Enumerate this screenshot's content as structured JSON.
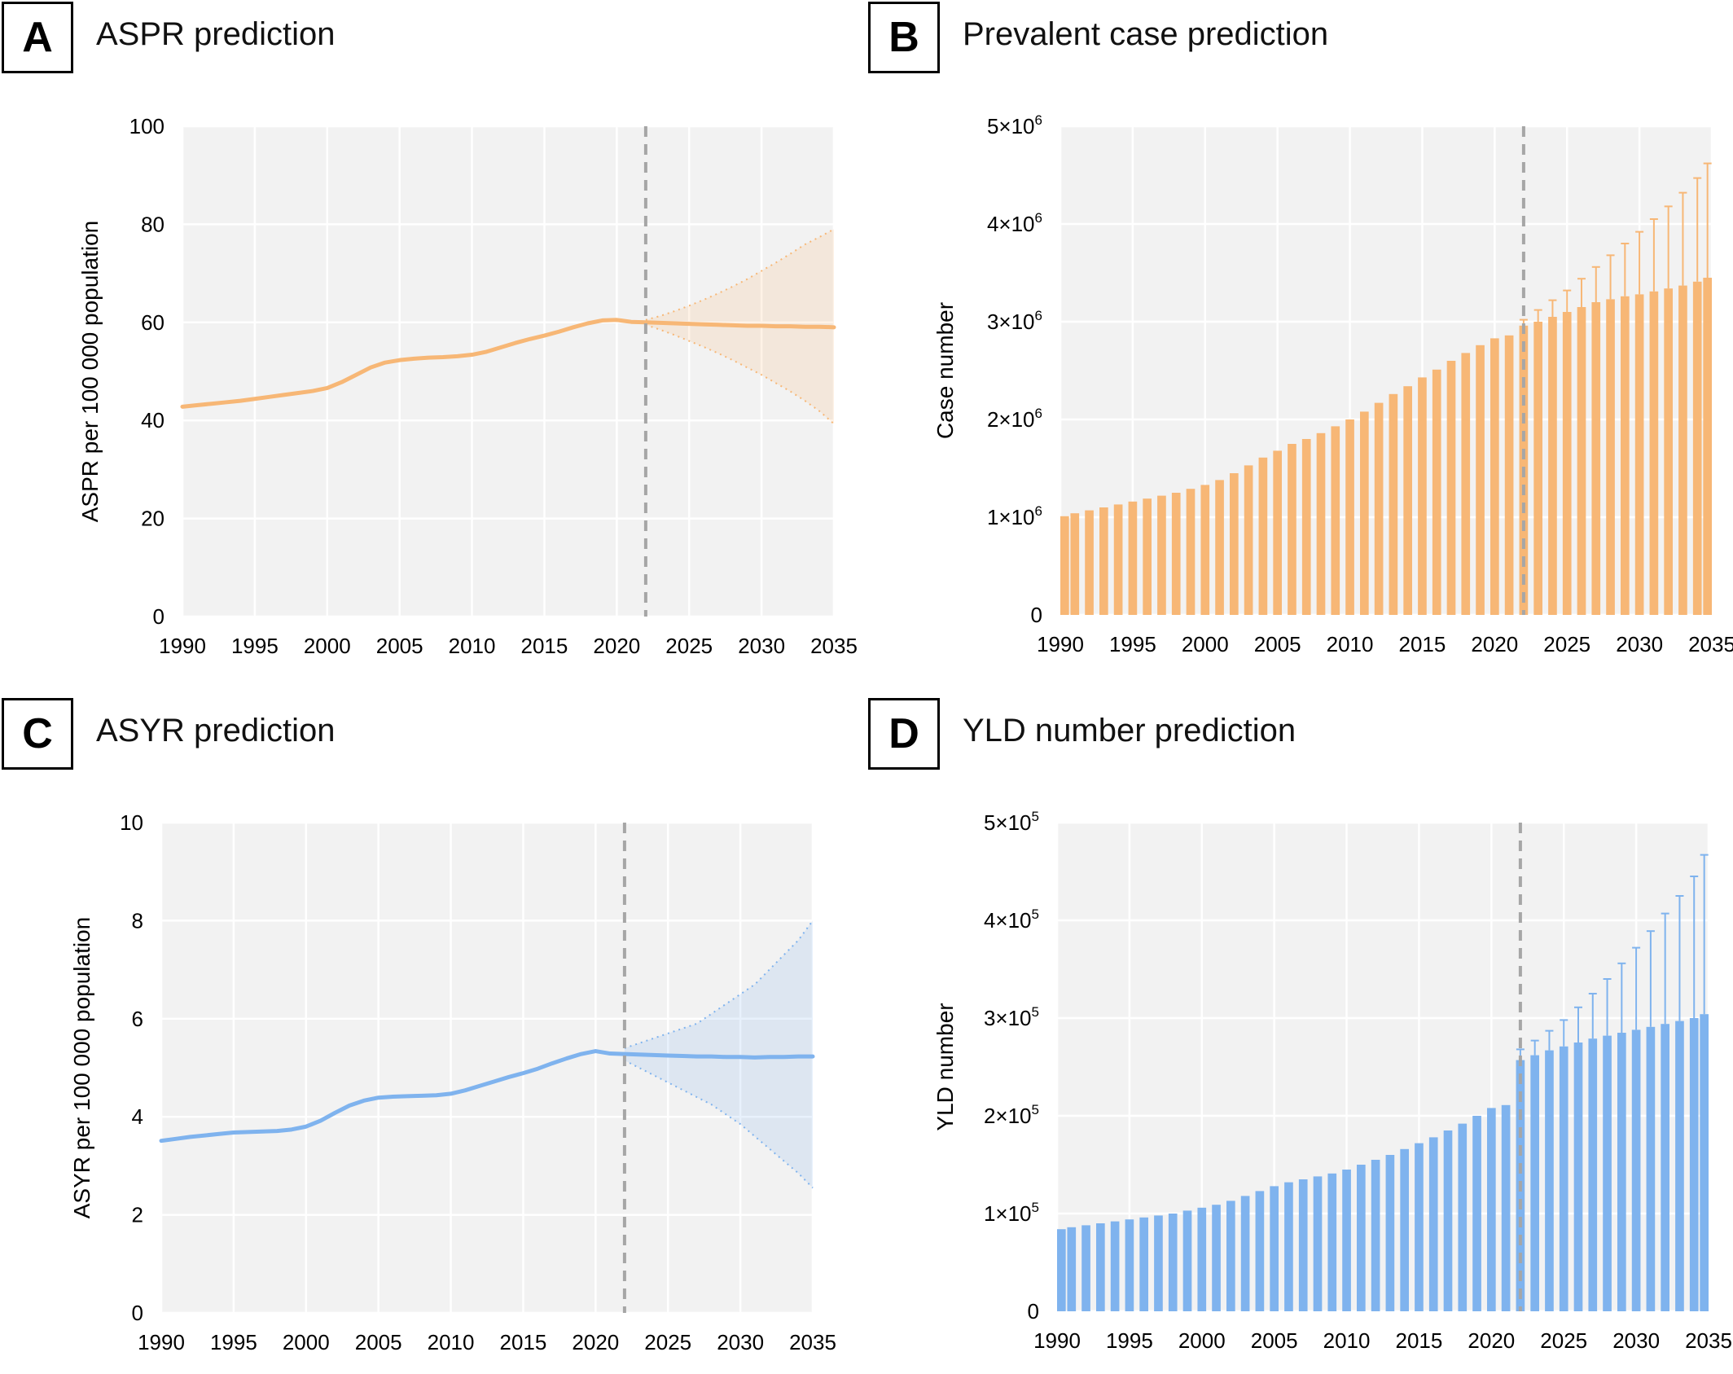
{
  "panels": [
    {
      "letter": "A",
      "title": "ASPR prediction",
      "chart_data": {
        "type": "line",
        "title": "ASPR prediction",
        "xlabel": "",
        "ylabel": "ASPR per 100 000 population",
        "xlim": [
          1990,
          2035
        ],
        "ylim": [
          0,
          100
        ],
        "xticks": [
          "1990",
          "1995",
          "2000",
          "2005",
          "2010",
          "2015",
          "2020",
          "2025",
          "2030",
          "2035"
        ],
        "yticks": [
          "0",
          "20",
          "40",
          "60",
          "80",
          "100"
        ],
        "prediction_start": 2022,
        "color": "#f7b776",
        "x": [
          1990,
          1991,
          1992,
          1993,
          1994,
          1995,
          1996,
          1997,
          1998,
          1999,
          2000,
          2001,
          2002,
          2003,
          2004,
          2005,
          2006,
          2007,
          2008,
          2009,
          2010,
          2011,
          2012,
          2013,
          2014,
          2015,
          2016,
          2017,
          2018,
          2019,
          2020,
          2021,
          2022,
          2023,
          2024,
          2025,
          2026,
          2027,
          2028,
          2029,
          2030,
          2031,
          2032,
          2033,
          2034,
          2035
        ],
        "values": [
          42.8,
          43.1,
          43.4,
          43.7,
          44.0,
          44.4,
          44.8,
          45.2,
          45.6,
          46.0,
          46.6,
          47.8,
          49.3,
          50.8,
          51.8,
          52.3,
          52.6,
          52.8,
          52.9,
          53.1,
          53.4,
          54.0,
          54.9,
          55.8,
          56.6,
          57.3,
          58.1,
          59.0,
          59.8,
          60.4,
          60.5,
          60.1,
          60.0,
          59.9,
          59.8,
          59.7,
          59.6,
          59.5,
          59.4,
          59.3,
          59.3,
          59.2,
          59.2,
          59.1,
          59.1,
          59.0
        ],
        "ci_x": [
          2022,
          2023,
          2024,
          2025,
          2026,
          2027,
          2028,
          2029,
          2030,
          2031,
          2032,
          2033,
          2034,
          2035
        ],
        "ci_upper": [
          60.5,
          61.3,
          62.3,
          63.4,
          64.6,
          65.9,
          67.3,
          68.8,
          70.5,
          72.2,
          74.0,
          75.9,
          77.4,
          79.0
        ],
        "ci_lower": [
          59.5,
          58.5,
          57.4,
          56.2,
          55.0,
          53.7,
          52.3,
          50.8,
          49.3,
          47.6,
          45.9,
          44.0,
          41.9,
          39.3
        ]
      }
    },
    {
      "letter": "B",
      "title": "Prevalent case prediction",
      "chart_data": {
        "type": "bar",
        "title": "Prevalent case prediction",
        "xlabel": "",
        "ylabel": "Case number",
        "xlim": [
          1990,
          2035
        ],
        "ylim": [
          0,
          5000000
        ],
        "xticks": [
          "1990",
          "1995",
          "2000",
          "2005",
          "2010",
          "2015",
          "2020",
          "2025",
          "2030",
          "2035"
        ],
        "yticks": [
          "0",
          "1×10",
          "2×10",
          "3×10",
          "4×10",
          "5×10"
        ],
        "ytick_exponent": "6",
        "prediction_start": 2022,
        "color": "#f7b776",
        "x": [
          1990,
          1991,
          1992,
          1993,
          1994,
          1995,
          1996,
          1997,
          1998,
          1999,
          2000,
          2001,
          2002,
          2003,
          2004,
          2005,
          2006,
          2007,
          2008,
          2009,
          2010,
          2011,
          2012,
          2013,
          2014,
          2015,
          2016,
          2017,
          2018,
          2019,
          2020,
          2021,
          2022,
          2023,
          2024,
          2025,
          2026,
          2027,
          2028,
          2029,
          2030,
          2031,
          2032,
          2033,
          2034,
          2035
        ],
        "values": [
          1010000,
          1040000,
          1070000,
          1100000,
          1130000,
          1160000,
          1190000,
          1220000,
          1250000,
          1290000,
          1330000,
          1380000,
          1450000,
          1530000,
          1610000,
          1680000,
          1750000,
          1800000,
          1860000,
          1930000,
          2000000,
          2080000,
          2170000,
          2260000,
          2340000,
          2430000,
          2510000,
          2600000,
          2680000,
          2760000,
          2830000,
          2860000,
          2960000,
          3000000,
          3050000,
          3100000,
          3150000,
          3200000,
          3230000,
          3260000,
          3280000,
          3310000,
          3340000,
          3370000,
          3410000,
          3450000
        ],
        "error_upper": [
          null,
          null,
          null,
          null,
          null,
          null,
          null,
          null,
          null,
          null,
          null,
          null,
          null,
          null,
          null,
          null,
          null,
          null,
          null,
          null,
          null,
          null,
          null,
          null,
          null,
          null,
          null,
          null,
          null,
          null,
          null,
          null,
          3020000,
          3120000,
          3220000,
          3320000,
          3440000,
          3560000,
          3680000,
          3800000,
          3920000,
          4050000,
          4180000,
          4320000,
          4470000,
          4620000
        ]
      }
    },
    {
      "letter": "C",
      "title": "ASYR prediction",
      "chart_data": {
        "type": "line",
        "title": "ASYR prediction",
        "xlabel": "",
        "ylabel": "ASYR per 100 000 population",
        "xlim": [
          1990,
          2035
        ],
        "ylim": [
          0,
          10
        ],
        "xticks": [
          "1990",
          "1995",
          "2000",
          "2005",
          "2010",
          "2015",
          "2020",
          "2025",
          "2030",
          "2035"
        ],
        "yticks": [
          "0",
          "2",
          "4",
          "6",
          "8",
          "10"
        ],
        "prediction_start": 2022,
        "color": "#7fb3ee",
        "x": [
          1990,
          1991,
          1992,
          1993,
          1994,
          1995,
          1996,
          1997,
          1998,
          1999,
          2000,
          2001,
          2002,
          2003,
          2004,
          2005,
          2006,
          2007,
          2008,
          2009,
          2010,
          2011,
          2012,
          2013,
          2014,
          2015,
          2016,
          2017,
          2018,
          2019,
          2020,
          2021,
          2022,
          2023,
          2024,
          2025,
          2026,
          2027,
          2028,
          2029,
          2030,
          2031,
          2032,
          2033,
          2034,
          2035
        ],
        "values": [
          3.51,
          3.55,
          3.59,
          3.62,
          3.65,
          3.68,
          3.69,
          3.7,
          3.71,
          3.74,
          3.8,
          3.92,
          4.08,
          4.23,
          4.33,
          4.39,
          4.41,
          4.42,
          4.43,
          4.44,
          4.47,
          4.54,
          4.63,
          4.72,
          4.81,
          4.89,
          4.98,
          5.09,
          5.19,
          5.28,
          5.34,
          5.29,
          5.28,
          5.27,
          5.26,
          5.25,
          5.24,
          5.23,
          5.23,
          5.22,
          5.22,
          5.21,
          5.22,
          5.22,
          5.23,
          5.23
        ],
        "ci_x": [
          2022,
          2023,
          2024,
          2025,
          2026,
          2027,
          2028,
          2029,
          2030,
          2031,
          2032,
          2033,
          2034,
          2035
        ],
        "ci_upper": [
          5.4,
          5.5,
          5.6,
          5.7,
          5.8,
          5.9,
          6.1,
          6.3,
          6.5,
          6.7,
          7.0,
          7.3,
          7.6,
          8.0
        ],
        "ci_lower": [
          5.15,
          5.0,
          4.85,
          4.7,
          4.55,
          4.4,
          4.25,
          4.05,
          3.85,
          3.6,
          3.35,
          3.1,
          2.85,
          2.55
        ]
      }
    },
    {
      "letter": "D",
      "title": "YLD number prediction",
      "chart_data": {
        "type": "bar",
        "title": "YLD number prediction",
        "xlabel": "",
        "ylabel": "YLD number",
        "xlim": [
          1990,
          2035
        ],
        "ylim": [
          0,
          500000
        ],
        "xticks": [
          "1990",
          "1995",
          "2000",
          "2005",
          "2010",
          "2015",
          "2020",
          "2025",
          "2030",
          "2035"
        ],
        "yticks": [
          "0",
          "1×10",
          "2×10",
          "3×10",
          "4×10",
          "5×10"
        ],
        "ytick_exponent": "5",
        "prediction_start": 2022,
        "color": "#7fb3ee",
        "x": [
          1990,
          1991,
          1992,
          1993,
          1994,
          1995,
          1996,
          1997,
          1998,
          1999,
          2000,
          2001,
          2002,
          2003,
          2004,
          2005,
          2006,
          2007,
          2008,
          2009,
          2010,
          2011,
          2012,
          2013,
          2014,
          2015,
          2016,
          2017,
          2018,
          2019,
          2020,
          2021,
          2022,
          2023,
          2024,
          2025,
          2026,
          2027,
          2028,
          2029,
          2030,
          2031,
          2032,
          2033,
          2034,
          2035
        ],
        "values": [
          84000,
          86000,
          88000,
          90000,
          92000,
          94000,
          96000,
          98000,
          100000,
          103000,
          106000,
          109000,
          113000,
          118000,
          123000,
          128000,
          132000,
          135000,
          138000,
          141000,
          145000,
          150000,
          155000,
          160000,
          166000,
          172000,
          178000,
          185000,
          192000,
          200000,
          208000,
          211000,
          257000,
          262000,
          267000,
          271000,
          275000,
          279000,
          282000,
          285000,
          288000,
          291000,
          294000,
          297000,
          300000,
          304000
        ],
        "error_upper": [
          null,
          null,
          null,
          null,
          null,
          null,
          null,
          null,
          null,
          null,
          null,
          null,
          null,
          null,
          null,
          null,
          null,
          null,
          null,
          null,
          null,
          null,
          null,
          null,
          null,
          null,
          null,
          null,
          null,
          null,
          null,
          null,
          268000,
          277000,
          287000,
          298000,
          311000,
          325000,
          340000,
          356000,
          372000,
          389000,
          407000,
          425000,
          445000,
          467000
        ]
      }
    }
  ]
}
